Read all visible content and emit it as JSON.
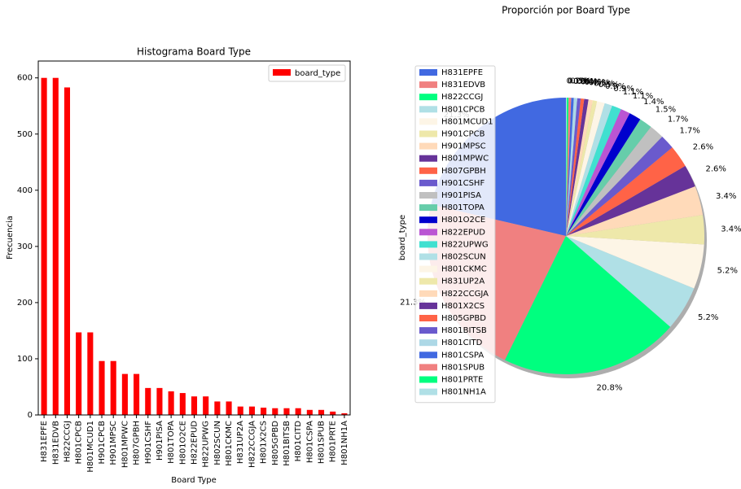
{
  "chart_data": [
    {
      "type": "bar",
      "title": "Histograma Board Type",
      "xlabel": "Board Type",
      "ylabel": "Frecuencia",
      "categories": [
        "H831EPFE",
        "H831EDVB",
        "H822CCGJ",
        "H801CPCB",
        "H801MCUD1",
        "H901CPCB",
        "H901MPSC",
        "H801MPWC",
        "H807GPBH",
        "H901CSHF",
        "H901PISA",
        "H801TOPA",
        "H801O2CE",
        "H822EPUD",
        "H822UPWG",
        "H802SCUN",
        "H801CKMC",
        "H831UP2A",
        "H822CCGJA",
        "H801X2CS",
        "H805GPBD",
        "H801BITSB",
        "H801CITD",
        "H801CSPA",
        "H801SPUB",
        "H801PRTE",
        "H801NH1A"
      ],
      "series": [
        {
          "name": "board_type",
          "color": "#ff0000",
          "values": [
            600,
            600,
            583,
            147,
            147,
            96,
            96,
            73,
            73,
            48,
            48,
            42,
            39,
            33,
            33,
            24,
            24,
            15,
            15,
            13,
            12,
            12,
            12,
            9,
            9,
            6,
            3
          ]
        }
      ],
      "ylim": [
        0,
        630
      ],
      "yticks": [
        0,
        100,
        200,
        300,
        400,
        500,
        600
      ],
      "legend": "upper right"
    },
    {
      "type": "pie",
      "title": "Proporción por Board Type",
      "ylabel": "board_type",
      "categories": [
        "H831EPFE",
        "H831EDVB",
        "H822CCGJ",
        "H801CPCB",
        "H801MCUD1",
        "H901CPCB",
        "H901MPSC",
        "H801MPWC",
        "H807GPBH",
        "H901CSHF",
        "H901PISA",
        "H801TOPA",
        "H801O2CE",
        "H822EPUD",
        "H822UPWG",
        "H802SCUN",
        "H801CKMC",
        "H831UP2A",
        "H822CCGJA",
        "H801X2CS",
        "H805GPBD",
        "H801BITSB",
        "H801CITD",
        "H801CSPA",
        "H801SPUB",
        "H801PRTE",
        "H801NH1A"
      ],
      "values": [
        21.3,
        21.3,
        20.8,
        5.2,
        5.2,
        3.4,
        3.4,
        2.6,
        2.6,
        1.7,
        1.7,
        1.5,
        1.4,
        1.1,
        1.1,
        0.9,
        0.9,
        0.5,
        0.5,
        0.5,
        0.4,
        0.4,
        0.4,
        0.3,
        0.3,
        0.2,
        0.1
      ],
      "value_labels": [
        "21.3%",
        "21.3%",
        "20.8%",
        "5.2%",
        "5.2%",
        "3.4%",
        "3.4%",
        "2.6%",
        "2.6%",
        "1.7%",
        "1.7%",
        "1.5%",
        "1.4%",
        "1.1%",
        "1.1%",
        "0.9%",
        "0.9%",
        "0.5%",
        "0.5%",
        "0.5%",
        "0.4%",
        "0.4%",
        "0.4%",
        "0.3%",
        "0.3%",
        "0.2%",
        "0.1%"
      ],
      "colors": [
        "#4169e1",
        "#f08080",
        "#00ff7f",
        "#b0e0e6",
        "#fdf5e6",
        "#eee8aa",
        "#ffdab9",
        "#663399",
        "#ff6347",
        "#6a5acd",
        "#c0c0c0",
        "#66cdaa",
        "#0000cd",
        "#ba55d3",
        "#40e0d0",
        "#b0e0e6",
        "#fdf5e6",
        "#eee8aa",
        "#ffdab9",
        "#663399",
        "#ff6347",
        "#6a5acd",
        "#add8e6",
        "#4169e1",
        "#f08080",
        "#00ff7f",
        "#b0e0e6"
      ],
      "shadow": true,
      "legend": "upper left"
    }
  ]
}
